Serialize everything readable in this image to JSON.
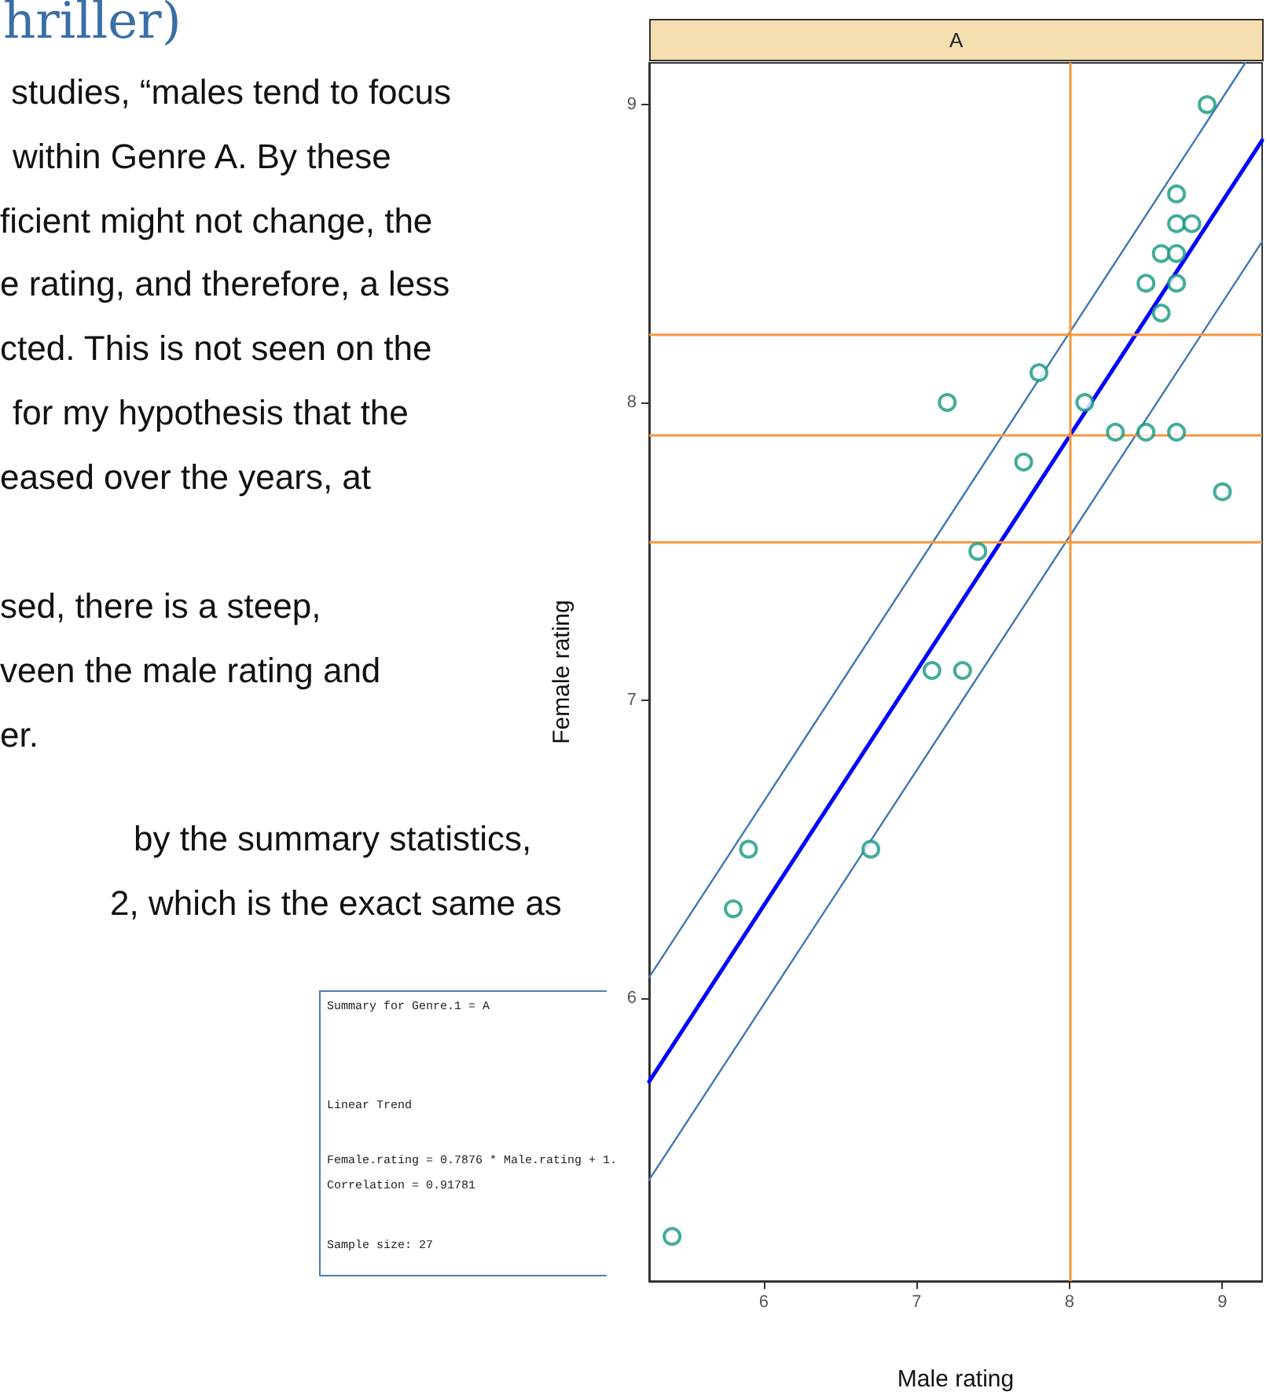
{
  "chart_data": {
    "type": "scatter",
    "title": "A",
    "xlabel": "Male rating",
    "ylabel": "Female rating",
    "annotations": [
      "hriller)",
      "studies, “males tend to focus",
      "within Genre A. By these",
      "ficient might not change, the",
      "e rating, and therefore, a less",
      "cted. This is not seen on the",
      "for my hypothesis that the",
      "eased over the years, at",
      "sed, there is a steep,",
      "veen the male rating and",
      "er.",
      "by the summary statistics,",
      "2, which is the exact same as",
      "Summary for Genre.1 = A",
      "Linear Trend",
      "Female.rating = 0.7876 * Male.rating + 1.",
      "Correlation = 0.91781",
      "Sample size: 27"
    ],
    "series": [
      {
        "marker": "circle",
        "color": "#13977f",
        "x": [
          8.9,
          8.7,
          8.7,
          8.8,
          8.6,
          8.7,
          8.5,
          8.7,
          8.6,
          7.8,
          7.2,
          8.1,
          8.3,
          8.5,
          8.7,
          7.7,
          9.0,
          7.4,
          7.1,
          7.3,
          5.9,
          5.8,
          6.7,
          5.4
        ],
        "values": [
          9.0,
          8.7,
          8.6,
          8.6,
          8.5,
          8.5,
          8.4,
          8.4,
          8.3,
          8.1,
          8.0,
          8.0,
          7.9,
          7.9,
          7.9,
          7.8,
          7.7,
          7.5,
          7.1,
          7.1,
          6.5,
          6.3,
          6.5,
          5.2
        ]
      },
      {
        "type": "line",
        "marker": "none",
        "color": "#0000ff",
        "x": [
          5.25,
          9.26
        ],
        "values": [
          5.72,
          8.88
        ]
      },
      {
        "type": "line",
        "marker": "none",
        "color": "#3f78b0",
        "x": [
          5.25,
          9.15
        ],
        "values": [
          6.07,
          9.14
        ]
      },
      {
        "type": "line",
        "marker": "none",
        "color": "#3f78b0",
        "x": [
          5.25,
          9.26
        ],
        "values": [
          5.39,
          8.54
        ]
      }
    ],
    "xlim": [
      5.25,
      9.26
    ],
    "ylim": [
      5.05,
      9.14
    ],
    "xticks": [
      6,
      7,
      8,
      9
    ],
    "yticks": [
      6,
      7,
      8,
      9
    ],
    "ref_lines": [
      {
        "axis": "x",
        "value": 8,
        "color": "#f7963c"
      },
      {
        "axis": "y",
        "value": 8.23,
        "color": "#f7963c"
      },
      {
        "axis": "y",
        "value": 7.89,
        "color": "#f7963c"
      },
      {
        "axis": "y",
        "value": 7.53,
        "color": "#f7963c"
      }
    ],
    "grid": false,
    "line_style": "solid"
  }
}
